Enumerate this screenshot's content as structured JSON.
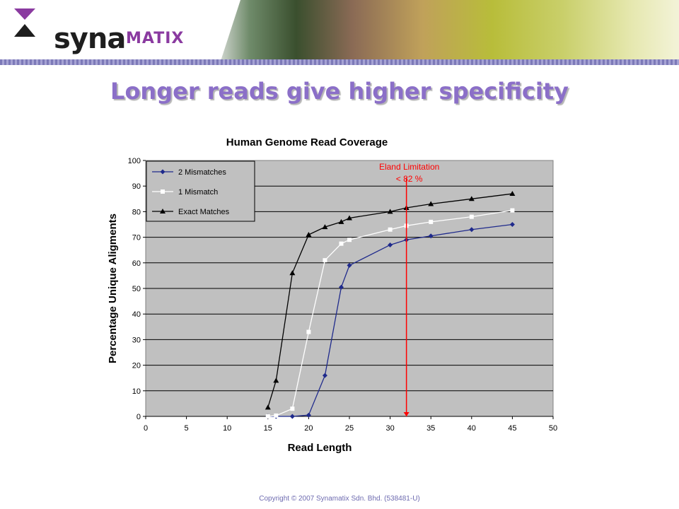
{
  "header": {
    "logo_main": "syna",
    "logo_accent": "MATIX"
  },
  "slide": {
    "title": "Longer reads give higher specificity",
    "footer": "Copyright © 2007 Synamatix Sdn. Bhd. (538481-U)"
  },
  "colors": {
    "title": "#8b6fc8",
    "plot_bg": "#c0c0c0",
    "series_2_mismatches": "#1f2a8c",
    "series_1_mismatch": "#ffffff",
    "series_exact": "#000000",
    "limit_line": "#ff0000"
  },
  "chart_data": {
    "type": "line",
    "title": "Human Genome Read Coverage",
    "xlabel": "Read Length",
    "ylabel": "Percentage Unique Aligments",
    "xlim": [
      0,
      50
    ],
    "ylim": [
      0,
      100
    ],
    "x_ticks": [
      "0",
      "5",
      "10",
      "15",
      "20",
      "25",
      "30",
      "35",
      "40",
      "45",
      "50"
    ],
    "y_ticks": [
      "0",
      "10",
      "20",
      "30",
      "40",
      "50",
      "60",
      "70",
      "80",
      "90",
      "100"
    ],
    "grid": "horizontal",
    "legend_position": "top-left",
    "series": [
      {
        "name": "2 Mismatches",
        "marker": "diamond",
        "x": [
          15,
          16,
          18,
          20,
          22,
          24,
          25,
          30,
          32,
          35,
          40,
          45
        ],
        "y": [
          0,
          0,
          0,
          0.5,
          16,
          50.5,
          59,
          67,
          69,
          70.5,
          73,
          75
        ]
      },
      {
        "name": "1 Mismatch",
        "marker": "square",
        "x": [
          15,
          16,
          18,
          20,
          22,
          24,
          25,
          30,
          32,
          35,
          40,
          45
        ],
        "y": [
          0,
          0.3,
          3,
          33,
          61,
          67.5,
          69,
          73,
          74.5,
          76,
          78,
          80.5
        ]
      },
      {
        "name": "Exact Matches",
        "marker": "triangle",
        "x": [
          15,
          16,
          18,
          20,
          22,
          24,
          25,
          30,
          32,
          35,
          40,
          45
        ],
        "y": [
          3.5,
          14,
          56,
          71,
          74,
          76,
          77.5,
          80,
          81.5,
          83,
          85,
          87
        ]
      }
    ],
    "annotations": [
      {
        "type": "vline",
        "x": 32,
        "lines": [
          "Eland Limitation",
          "< 82 %"
        ]
      }
    ]
  }
}
